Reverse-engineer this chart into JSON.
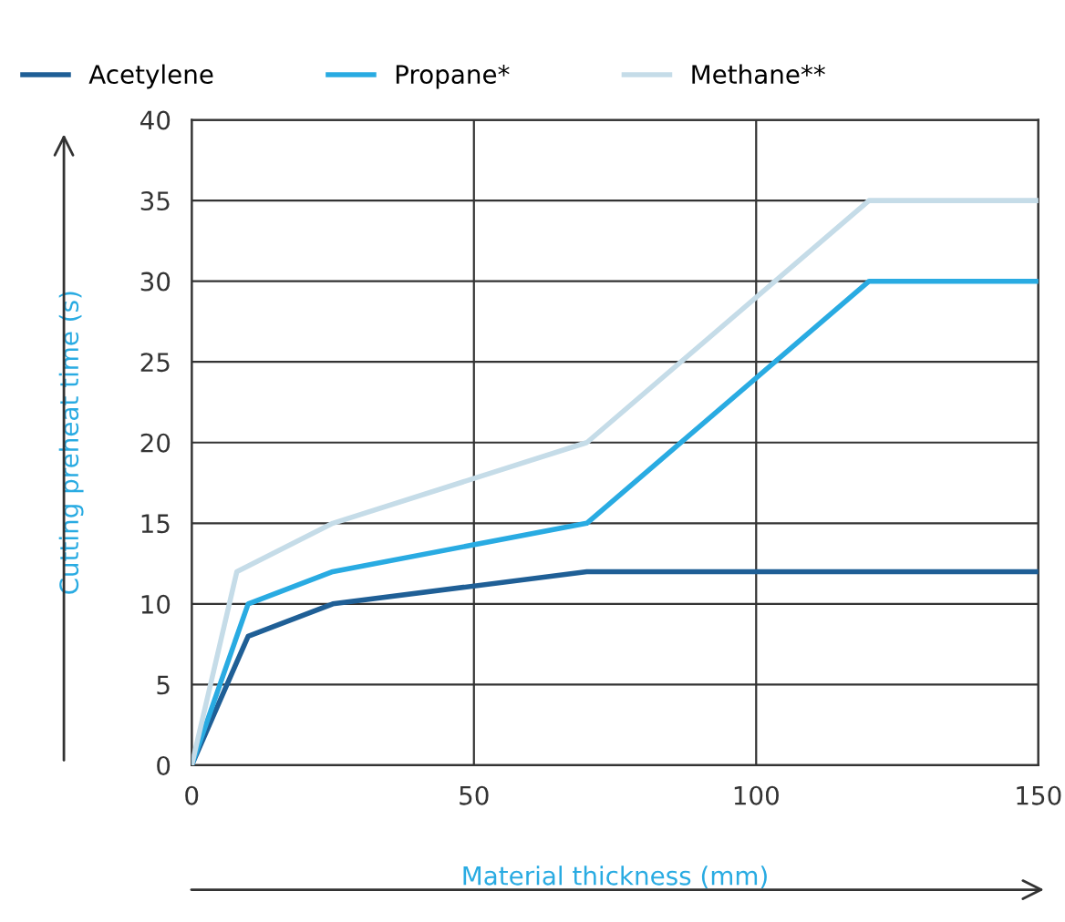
{
  "chart_data": {
    "type": "line",
    "xlabel": "Material thickness (mm)",
    "ylabel": "Cutting preheat time (s)",
    "xlim": [
      0,
      150
    ],
    "xticks": [
      0,
      50,
      100,
      150
    ],
    "ylim": [
      0,
      40
    ],
    "yticks": [
      0,
      5,
      10,
      15,
      20,
      25,
      30,
      35,
      40
    ],
    "grid": true,
    "legend": "top left",
    "marker": "none",
    "line_style": "solid",
    "series": [
      {
        "name": "Acetylene",
        "color": "#1f5f96",
        "x": [
          0,
          10,
          25,
          70,
          150
        ],
        "values": [
          0,
          8,
          10,
          12,
          12
        ]
      },
      {
        "name": "Propane*",
        "color": "#29abe2",
        "x": [
          0,
          10,
          25,
          70,
          120,
          150
        ],
        "values": [
          0,
          10,
          12,
          15,
          30,
          30
        ]
      },
      {
        "name": "Methane**",
        "color": "#c5dce8",
        "x": [
          0,
          8,
          25,
          70,
          120,
          150
        ],
        "values": [
          0,
          12,
          15,
          20,
          35,
          35
        ]
      }
    ]
  }
}
